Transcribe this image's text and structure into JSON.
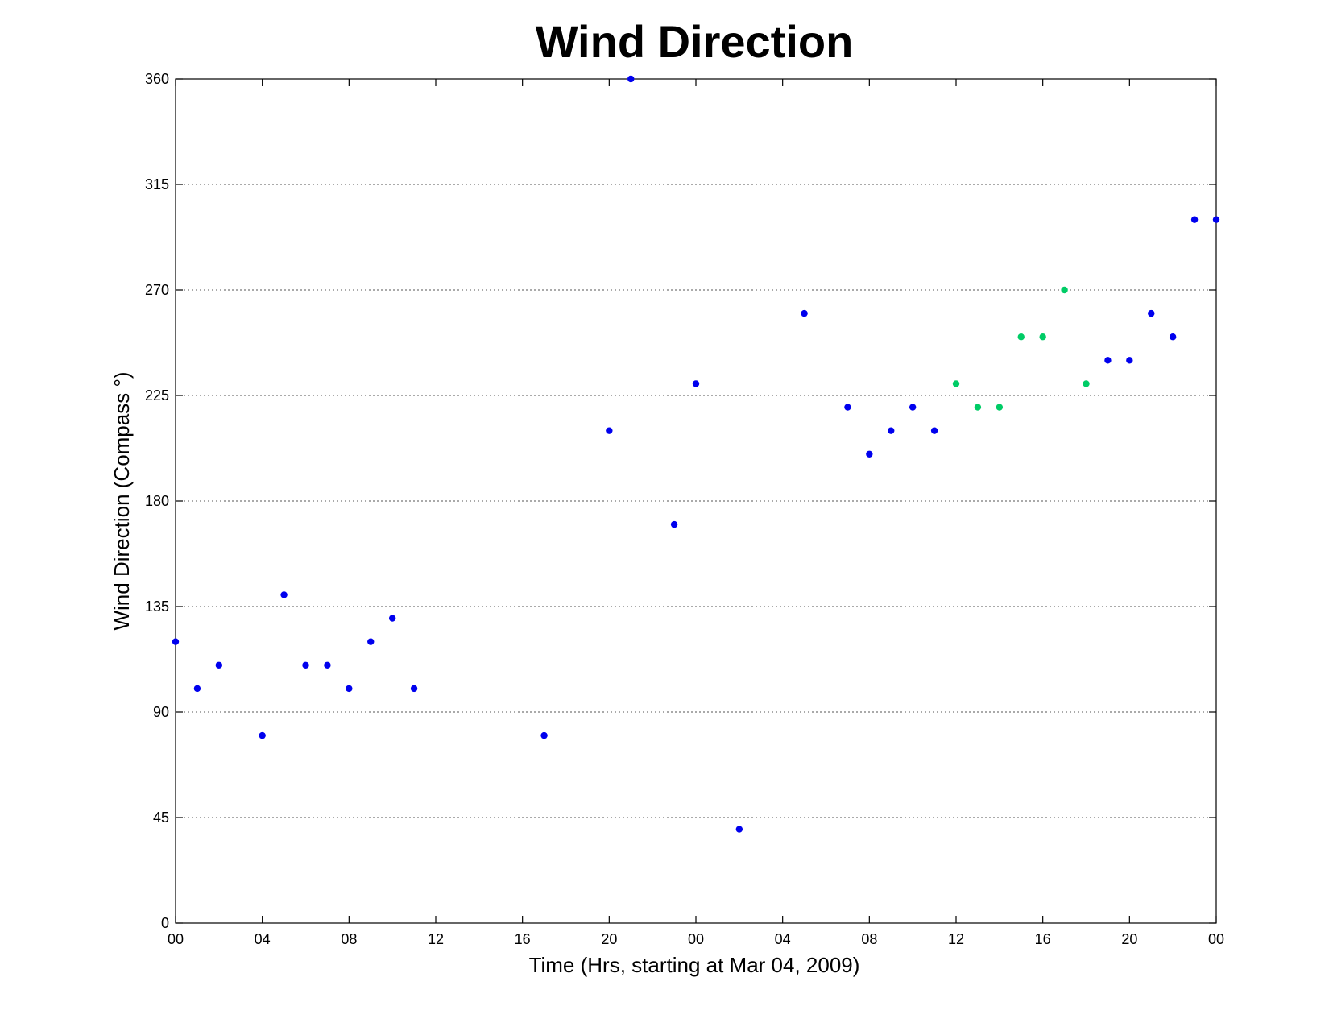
{
  "chart_data": {
    "type": "scatter",
    "title": "Wind Direction",
    "xlabel": "Time (Hrs, starting at Mar 04, 2009)",
    "ylabel": "Wind Direction (Compass °)",
    "x_unit": "hours",
    "xlim": [
      0,
      48
    ],
    "ylim": [
      0,
      360
    ],
    "x_ticks": [
      {
        "value": 0,
        "label": "00"
      },
      {
        "value": 4,
        "label": "04"
      },
      {
        "value": 8,
        "label": "08"
      },
      {
        "value": 12,
        "label": "12"
      },
      {
        "value": 16,
        "label": "16"
      },
      {
        "value": 20,
        "label": "20"
      },
      {
        "value": 24,
        "label": "00"
      },
      {
        "value": 28,
        "label": "04"
      },
      {
        "value": 32,
        "label": "08"
      },
      {
        "value": 36,
        "label": "12"
      },
      {
        "value": 40,
        "label": "16"
      },
      {
        "value": 44,
        "label": "20"
      },
      {
        "value": 48,
        "label": "00"
      }
    ],
    "y_ticks": [
      0,
      45,
      90,
      135,
      180,
      225,
      270,
      315,
      360
    ],
    "grid": "horizontal dotted",
    "series": [
      {
        "color": "#0000ee",
        "points": [
          {
            "x": 0,
            "y": 120
          },
          {
            "x": 1,
            "y": 100
          },
          {
            "x": 2,
            "y": 110
          },
          {
            "x": 4,
            "y": 80
          },
          {
            "x": 5,
            "y": 140
          },
          {
            "x": 6,
            "y": 110
          },
          {
            "x": 7,
            "y": 110
          },
          {
            "x": 8,
            "y": 100
          },
          {
            "x": 9,
            "y": 120
          },
          {
            "x": 10,
            "y": 130
          },
          {
            "x": 11,
            "y": 100
          },
          {
            "x": 17,
            "y": 80
          },
          {
            "x": 20,
            "y": 210
          },
          {
            "x": 21,
            "y": 360
          },
          {
            "x": 23,
            "y": 170
          },
          {
            "x": 24,
            "y": 230
          },
          {
            "x": 26,
            "y": 40
          },
          {
            "x": 29,
            "y": 260
          },
          {
            "x": 31,
            "y": 220
          },
          {
            "x": 32,
            "y": 200
          },
          {
            "x": 33,
            "y": 210
          },
          {
            "x": 34,
            "y": 220
          },
          {
            "x": 35,
            "y": 210
          },
          {
            "x": 43,
            "y": 240
          },
          {
            "x": 44,
            "y": 240
          },
          {
            "x": 45,
            "y": 260
          },
          {
            "x": 46,
            "y": 250
          },
          {
            "x": 47,
            "y": 300
          },
          {
            "x": 48,
            "y": 300
          }
        ]
      },
      {
        "color": "#00cc66",
        "points": [
          {
            "x": 36,
            "y": 230
          },
          {
            "x": 37,
            "y": 220
          },
          {
            "x": 38,
            "y": 220
          },
          {
            "x": 39,
            "y": 250
          },
          {
            "x": 40,
            "y": 250
          },
          {
            "x": 41,
            "y": 270
          },
          {
            "x": 42,
            "y": 230
          }
        ]
      }
    ]
  }
}
